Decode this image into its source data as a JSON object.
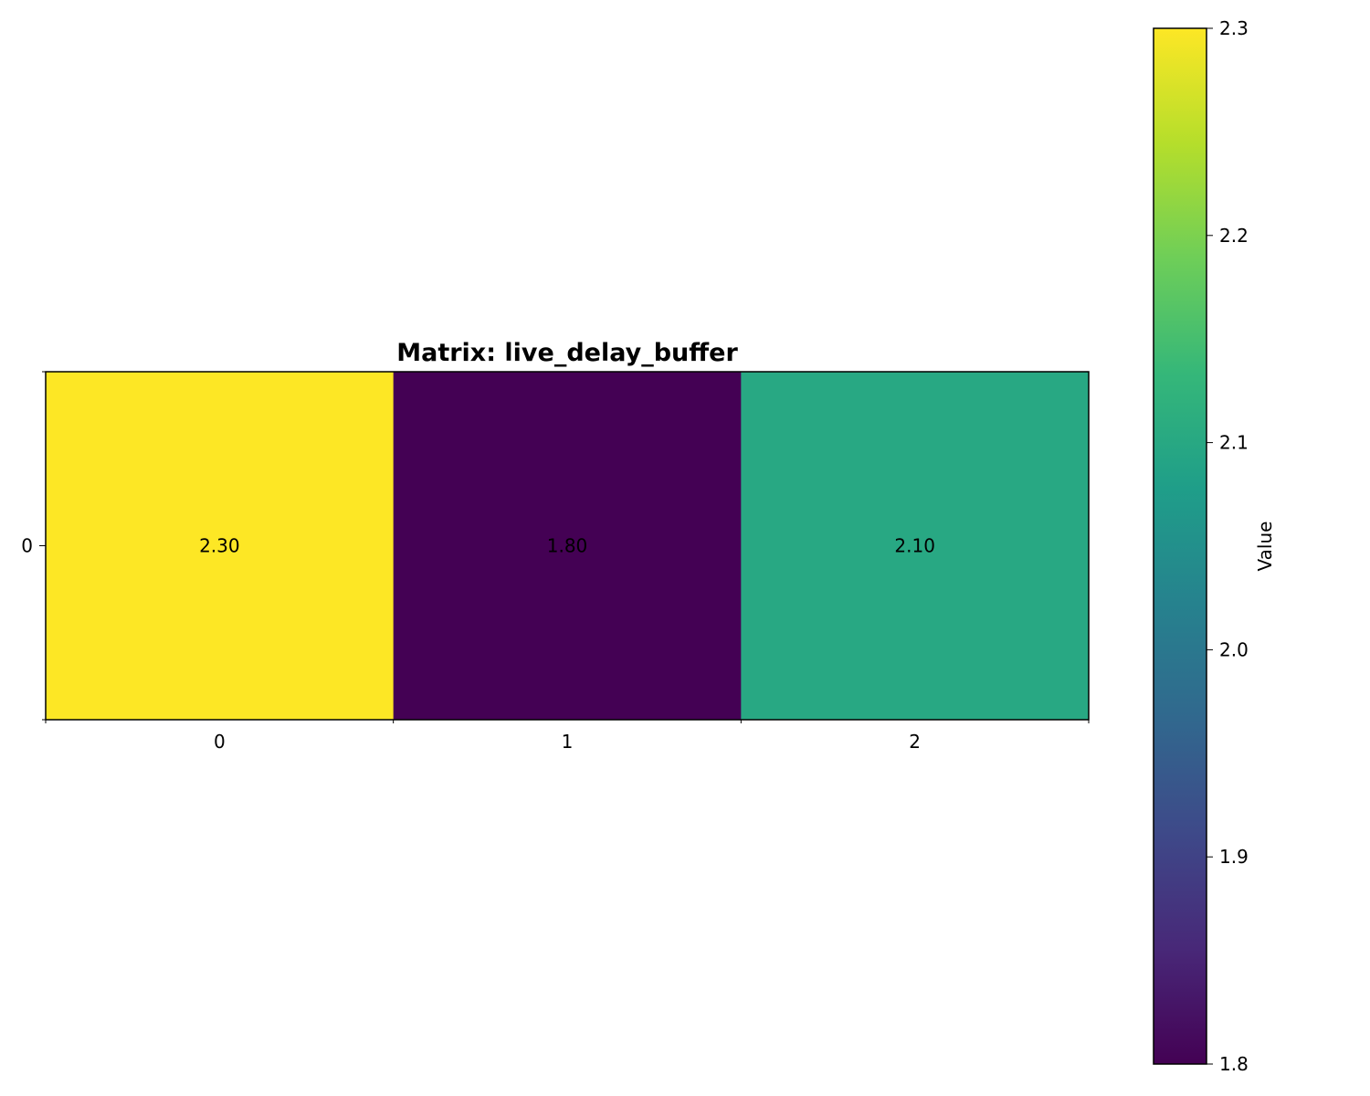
{
  "chart_data": {
    "type": "heatmap",
    "title": "Matrix: live_delay_buffer",
    "rows": [
      "0"
    ],
    "columns": [
      "0",
      "1",
      "2"
    ],
    "values": [
      [
        2.3,
        1.8,
        2.1
      ]
    ],
    "cell_labels": [
      [
        "2.30",
        "1.80",
        "2.10"
      ]
    ],
    "colormap": "viridis",
    "colorbar": {
      "label": "Value",
      "range": [
        1.8,
        2.3
      ],
      "ticks": [
        "1.8",
        "1.9",
        "2.0",
        "2.1",
        "2.2",
        "2.3"
      ]
    },
    "grid": false,
    "colors": {
      "viridis_stops": [
        "#440154",
        "#482878",
        "#3e4989",
        "#31688e",
        "#26828e",
        "#1f9e89",
        "#35b779",
        "#6ece58",
        "#b5de2b",
        "#fde725"
      ]
    }
  }
}
